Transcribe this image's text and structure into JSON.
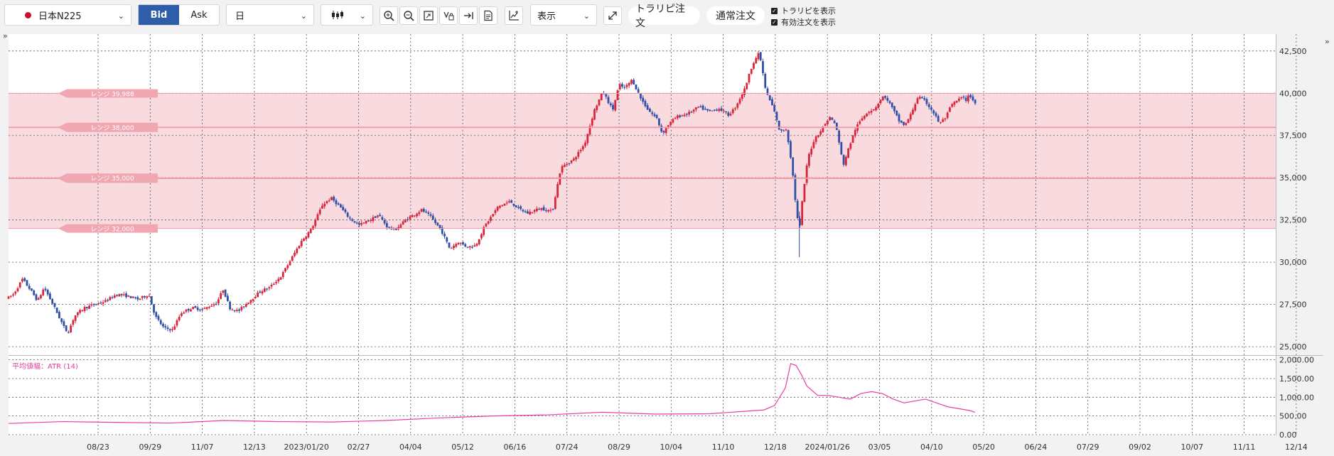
{
  "toolbar": {
    "symbol": "日本N225",
    "bid_label": "Bid",
    "ask_label": "Ask",
    "period": "日",
    "display_label": "表示",
    "traripi_order_label": "トラリピ注文",
    "normal_order_label": "通常注文",
    "show_traripi_label": "トラリピを表示",
    "show_valid_orders_label": "有効注文を表示",
    "show_traripi_checked": true,
    "show_valid_orders_checked": true,
    "icons": [
      "candlestick-icon",
      "zoom-in-icon",
      "zoom-out-icon",
      "fit-screen-icon",
      "pen-lock-icon",
      "arrow-to-end-icon",
      "document-icon",
      "add-indicator-icon",
      "expand-icon"
    ]
  },
  "colors": {
    "up": "#d9253c",
    "down": "#3050a8",
    "range_band": "#f9dadf",
    "range_tag": "#f0a7b1",
    "range_line": "#ec9aa6",
    "atr_line": "#e8409e",
    "toolbar_active": "#2e5eaa"
  },
  "chart_data": [
    {
      "type": "candlestick",
      "title": "",
      "x_ticks": [
        "08/23",
        "09/29",
        "11/07",
        "12/13",
        "2023/01/20",
        "02/27",
        "04/04",
        "05/12",
        "06/16",
        "07/24",
        "08/29",
        "10/04",
        "11/10",
        "12/18",
        "2024/01/26",
        "03/05",
        "04/10",
        "05/20",
        "06/24",
        "07/29",
        "09/02",
        "10/07",
        "11/11",
        "12/14"
      ],
      "y_ticks": [
        "42,500",
        "40,000",
        "37,500",
        "35,000",
        "32,500",
        "30,000",
        "27,500",
        "25,000"
      ],
      "ylim": [
        24500,
        43500
      ],
      "series": [
        {
          "anchors": [
            [
              0,
              27900
            ],
            [
              0.45,
              28100
            ],
            [
              1.3,
              29000
            ],
            [
              2.1,
              28300
            ],
            [
              2.7,
              27700
            ],
            [
              3.3,
              28500
            ],
            [
              4.2,
              27400
            ],
            [
              5.1,
              26200
            ],
            [
              5.5,
              25800
            ],
            [
              6.1,
              26800
            ],
            [
              7,
              27300
            ],
            [
              8,
              27500
            ],
            [
              9,
              27700
            ],
            [
              10,
              28100
            ],
            [
              11,
              28000
            ],
            [
              12,
              27800
            ],
            [
              13,
              28100
            ],
            [
              13.6,
              26800
            ],
            [
              14.4,
              26100
            ],
            [
              15.2,
              26000
            ],
            [
              16,
              27000
            ],
            [
              17,
              27300
            ],
            [
              18,
              27200
            ],
            [
              19.3,
              27600
            ],
            [
              19.9,
              28400
            ],
            [
              20.5,
              27300
            ],
            [
              21.3,
              27100
            ],
            [
              22.3,
              27700
            ],
            [
              23.4,
              28300
            ],
            [
              24.2,
              28500
            ],
            [
              25.3,
              29200
            ],
            [
              26.2,
              30200
            ],
            [
              27.1,
              31200
            ],
            [
              28.1,
              32000
            ],
            [
              29.1,
              33400
            ],
            [
              29.9,
              33800
            ],
            [
              30.7,
              33300
            ],
            [
              31.6,
              32600
            ],
            [
              32.5,
              32200
            ],
            [
              33.5,
              32500
            ],
            [
              34.3,
              32800
            ],
            [
              35.1,
              32100
            ],
            [
              35.8,
              31900
            ],
            [
              36.8,
              32500
            ],
            [
              38.3,
              33100
            ],
            [
              39.1,
              32700
            ],
            [
              40.1,
              31900
            ],
            [
              40.9,
              30800
            ],
            [
              41.7,
              31200
            ],
            [
              42.5,
              30900
            ],
            [
              43.3,
              31000
            ],
            [
              44.2,
              32200
            ],
            [
              45.4,
              33300
            ],
            [
              46.5,
              33600
            ],
            [
              47.2,
              33200
            ],
            [
              48.1,
              32900
            ],
            [
              49.3,
              33200
            ],
            [
              50.4,
              33000
            ],
            [
              51.2,
              35600
            ],
            [
              52.4,
              36100
            ],
            [
              53.4,
              37000
            ],
            [
              54.3,
              39000
            ],
            [
              55.1,
              40100
            ],
            [
              56,
              39000
            ],
            [
              56.6,
              40500
            ],
            [
              57.1,
              40300
            ],
            [
              57.8,
              40800
            ],
            [
              58.6,
              39700
            ],
            [
              59.3,
              39000
            ],
            [
              60.1,
              38500
            ],
            [
              60.6,
              37600
            ],
            [
              61.1,
              38100
            ],
            [
              61.9,
              38600
            ],
            [
              63,
              38800
            ],
            [
              64,
              39200
            ],
            [
              64.9,
              38900
            ],
            [
              65.9,
              39100
            ],
            [
              66.7,
              38700
            ],
            [
              67.3,
              39100
            ],
            [
              68.2,
              40200
            ],
            [
              69,
              41800
            ],
            [
              69.6,
              42400
            ],
            [
              70.2,
              40100
            ],
            [
              70.9,
              39100
            ],
            [
              71.5,
              37700
            ],
            [
              72.1,
              37900
            ],
            [
              72.6,
              35800
            ],
            [
              73,
              33200
            ],
            [
              73.3,
              31800
            ],
            [
              73.6,
              33800
            ],
            [
              74.1,
              36200
            ],
            [
              74.7,
              37300
            ],
            [
              75.3,
              37800
            ],
            [
              76.1,
              38600
            ],
            [
              76.7,
              38100
            ],
            [
              77.1,
              36600
            ],
            [
              77.4,
              35800
            ],
            [
              77.9,
              36800
            ],
            [
              78.5,
              37900
            ],
            [
              79.1,
              38500
            ],
            [
              79.6,
              38900
            ],
            [
              80.3,
              39100
            ],
            [
              81,
              39800
            ],
            [
              81.5,
              39600
            ],
            [
              82.1,
              38900
            ],
            [
              82.6,
              38300
            ],
            [
              83.1,
              38100
            ],
            [
              83.6,
              38700
            ],
            [
              84.3,
              39800
            ],
            [
              85,
              39500
            ],
            [
              85.7,
              38900
            ],
            [
              86.3,
              38200
            ],
            [
              86.9,
              38600
            ],
            [
              87.4,
              39300
            ],
            [
              88,
              39600
            ],
            [
              88.5,
              39800
            ],
            [
              88.6,
              39500
            ],
            [
              89.1,
              39900
            ],
            [
              89.6,
              39400
            ]
          ],
          "note": ""
        }
      ],
      "range_lines": [
        {
          "label": "レンジ 39,988",
          "value": 39988
        },
        {
          "label": "レンジ 37,964",
          "value": 37964
        },
        {
          "label": "レンジ 38,000",
          "value": 38000
        },
        {
          "label": "レンジ 34,948",
          "value": 34948
        },
        {
          "label": "レンジ 35,000",
          "value": 35000
        },
        {
          "label": "レンジ 32,000",
          "value": 32000
        }
      ],
      "range_band": [
        32000,
        39988
      ],
      "grid": true
    },
    {
      "type": "line",
      "title": "平均値幅：ATR (14)",
      "y_ticks": [
        "2,000.00",
        "1,500.00",
        "1,000.00",
        "500.00",
        "0.00"
      ],
      "ylim": [
        0,
        2050
      ],
      "x": [
        0,
        5,
        10,
        15,
        20,
        25,
        30,
        35,
        40,
        45,
        50,
        55,
        60,
        65,
        69,
        70,
        71,
        72,
        72.5,
        73,
        73.5,
        74,
        75,
        76,
        77,
        78,
        79,
        80,
        81,
        82,
        83,
        84,
        85,
        86,
        87,
        88,
        89,
        89.6
      ],
      "values": [
        300,
        350,
        330,
        310,
        380,
        350,
        340,
        380,
        450,
        500,
        530,
        600,
        550,
        560,
        640,
        660,
        780,
        1250,
        1900,
        1850,
        1600,
        1300,
        1050,
        1050,
        1000,
        950,
        1100,
        1150,
        1100,
        950,
        850,
        900,
        950,
        850,
        750,
        700,
        650,
        600
      ],
      "grid": true
    }
  ]
}
